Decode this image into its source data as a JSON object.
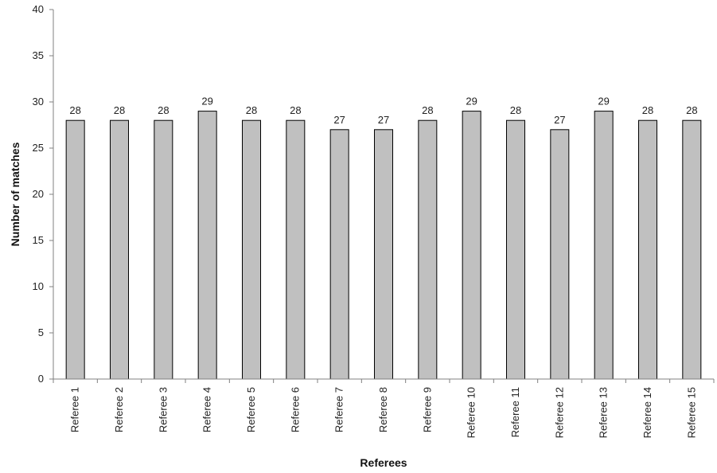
{
  "chart_data": {
    "type": "bar",
    "categories": [
      "Referee 1",
      "Referee 2",
      "Referee 3",
      "Referee 4",
      "Referee 5",
      "Referee 6",
      "Referee 7",
      "Referee 8",
      "Referee 9",
      "Referee 10",
      "Referee 11",
      "Referee 12",
      "Referee 13",
      "Referee 14",
      "Referee 15"
    ],
    "values": [
      28,
      28,
      28,
      29,
      28,
      28,
      27,
      27,
      28,
      29,
      28,
      27,
      29,
      28,
      28
    ],
    "title": "",
    "xlabel": "Referees",
    "ylabel": "Number of matches",
    "ylim": [
      0,
      40
    ],
    "yticks": [
      0,
      5,
      10,
      15,
      20,
      25,
      30,
      35,
      40
    ],
    "grid": false,
    "legend": "none",
    "data_labels": true,
    "colors": {
      "bar_fill": "#c0c0c0",
      "bar_stroke": "#000000",
      "axis": "#808080"
    }
  }
}
